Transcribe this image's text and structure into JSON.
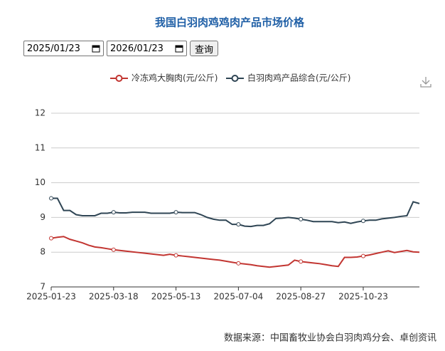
{
  "controls": {
    "start_date": "2025/01/23",
    "end_date": "2026/01/23",
    "button": "查询"
  },
  "source": "数据来源：中国畜牧业协会白羽肉鸡分会、卓创资讯",
  "chart_data": {
    "type": "line",
    "title": "我国白羽肉鸡鸡肉产品市场价格",
    "categories": [
      "2025-01-23",
      null,
      null,
      null,
      null,
      null,
      null,
      null,
      null,
      null,
      "2025-03-18",
      null,
      null,
      null,
      null,
      null,
      null,
      null,
      null,
      null,
      "2025-05-13",
      null,
      null,
      null,
      null,
      null,
      null,
      null,
      null,
      null,
      "2025-07-04",
      null,
      null,
      null,
      null,
      null,
      null,
      null,
      null,
      null,
      "2025-08-27",
      null,
      null,
      null,
      null,
      null,
      null,
      null,
      null,
      null,
      "2025-10-23",
      null,
      null,
      null,
      null,
      null,
      null,
      null,
      null,
      null
    ],
    "series": [
      {
        "name": "冷冻鸡大胸肉(元/公斤)",
        "color": "#c23531",
        "values": [
          8.4,
          8.43,
          8.45,
          8.37,
          8.32,
          8.27,
          8.2,
          8.15,
          8.13,
          8.1,
          8.07,
          8.05,
          8.03,
          8.01,
          7.99,
          7.97,
          7.95,
          7.93,
          7.91,
          7.94,
          7.91,
          7.89,
          7.87,
          7.85,
          7.83,
          7.81,
          7.79,
          7.77,
          7.74,
          7.71,
          7.68,
          7.66,
          7.64,
          7.61,
          7.59,
          7.57,
          7.59,
          7.61,
          7.63,
          7.77,
          7.73,
          7.71,
          7.69,
          7.67,
          7.64,
          7.61,
          7.59,
          7.85,
          7.85,
          7.86,
          7.89,
          7.92,
          7.96,
          8.0,
          8.04,
          7.99,
          8.02,
          8.05,
          8.01,
          8.0
        ]
      },
      {
        "name": "白羽肉鸡产品综合(元/公斤)",
        "color": "#2f4554",
        "values": [
          9.55,
          9.55,
          9.2,
          9.2,
          9.08,
          9.05,
          9.05,
          9.05,
          9.12,
          9.12,
          9.15,
          9.13,
          9.13,
          9.15,
          9.15,
          9.15,
          9.12,
          9.12,
          9.12,
          9.12,
          9.15,
          9.14,
          9.14,
          9.14,
          9.08,
          9.0,
          8.95,
          8.92,
          8.92,
          8.8,
          8.8,
          8.75,
          8.74,
          8.77,
          8.77,
          8.82,
          8.97,
          8.98,
          9.0,
          8.98,
          8.95,
          8.92,
          8.88,
          8.88,
          8.88,
          8.88,
          8.85,
          8.87,
          8.83,
          8.87,
          8.9,
          8.92,
          8.92,
          8.96,
          8.98,
          9.0,
          9.03,
          9.05,
          9.45,
          9.4
        ]
      }
    ],
    "ylim": [
      7,
      12
    ],
    "yticks": [
      7,
      8,
      9,
      10,
      11,
      12
    ],
    "grid": true,
    "legend": "top"
  }
}
